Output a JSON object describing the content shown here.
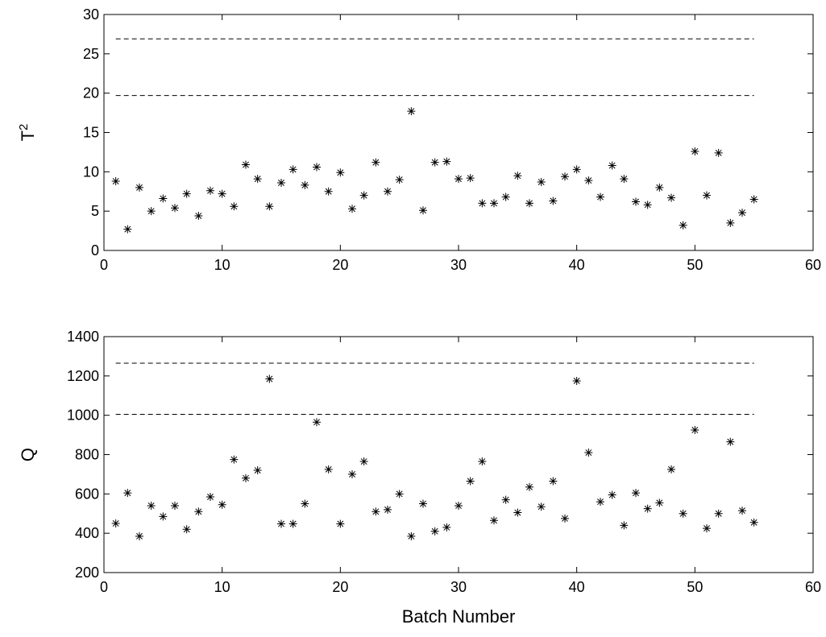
{
  "chart_data": [
    {
      "type": "scatter",
      "title": "",
      "xlabel": "",
      "ylabel": "T",
      "ylabel_superscript": "2",
      "xlim": [
        0,
        60
      ],
      "ylim": [
        0,
        30
      ],
      "xticks": [
        0,
        10,
        20,
        30,
        40,
        50,
        60
      ],
      "yticks": [
        0,
        5,
        10,
        15,
        20,
        25,
        30
      ],
      "grid": false,
      "marker": "asterisk",
      "limits": [
        {
          "y": 26.9,
          "x_range": [
            1,
            55
          ],
          "style": "dashed"
        },
        {
          "y": 19.7,
          "x_range": [
            1,
            55
          ],
          "style": "dashed"
        }
      ],
      "series": [
        {
          "x": [
            1,
            2,
            3,
            4,
            5,
            6,
            7,
            8,
            9,
            10,
            11,
            12,
            13,
            14,
            15,
            16,
            17,
            18,
            19,
            20,
            21,
            22,
            23,
            24,
            25,
            26,
            27,
            28,
            29,
            30,
            31,
            32,
            33,
            34,
            35,
            36,
            37,
            38,
            39,
            40,
            41,
            42,
            43,
            44,
            45,
            46,
            47,
            48,
            49,
            50,
            51,
            52,
            53,
            54,
            55
          ],
          "y": [
            8.8,
            2.7,
            8.0,
            5.0,
            6.6,
            5.4,
            7.2,
            4.4,
            7.6,
            7.2,
            5.6,
            10.9,
            9.1,
            5.6,
            8.6,
            10.3,
            8.3,
            10.6,
            7.5,
            9.9,
            5.3,
            7.0,
            11.2,
            7.5,
            9.0,
            17.7,
            5.1,
            11.2,
            11.3,
            9.1,
            9.2,
            6.0,
            6.0,
            6.8,
            9.5,
            6.0,
            8.7,
            6.3,
            9.4,
            10.3,
            8.9,
            6.8,
            10.8,
            9.1,
            6.2,
            5.8,
            8.0,
            6.7,
            3.2,
            12.6,
            7.0,
            12.4,
            3.5,
            4.8,
            6.5
          ]
        }
      ]
    },
    {
      "type": "scatter",
      "title": "",
      "xlabel": "Batch Number",
      "ylabel": "Q",
      "xlim": [
        0,
        60
      ],
      "ylim": [
        200,
        1400
      ],
      "xticks": [
        0,
        10,
        20,
        30,
        40,
        50,
        60
      ],
      "yticks": [
        200,
        400,
        600,
        800,
        1000,
        1200,
        1400
      ],
      "grid": false,
      "marker": "asterisk",
      "limits": [
        {
          "y": 1265,
          "x_range": [
            1,
            55
          ],
          "style": "dashed"
        },
        {
          "y": 1005,
          "x_range": [
            1,
            55
          ],
          "style": "dashed"
        }
      ],
      "series": [
        {
          "x": [
            1,
            2,
            3,
            4,
            5,
            6,
            7,
            8,
            9,
            10,
            11,
            12,
            13,
            14,
            15,
            16,
            17,
            18,
            19,
            20,
            21,
            22,
            23,
            24,
            25,
            26,
            27,
            28,
            29,
            30,
            31,
            32,
            33,
            34,
            35,
            36,
            37,
            38,
            39,
            40,
            41,
            42,
            43,
            44,
            45,
            46,
            47,
            48,
            49,
            50,
            51,
            52,
            53,
            54,
            55
          ],
          "y": [
            450,
            605,
            385,
            540,
            485,
            540,
            420,
            510,
            585,
            545,
            775,
            680,
            720,
            1185,
            448,
            448,
            550,
            965,
            725,
            448,
            700,
            765,
            510,
            520,
            600,
            385,
            550,
            410,
            430,
            540,
            665,
            765,
            465,
            570,
            505,
            635,
            535,
            665,
            475,
            1175,
            810,
            560,
            595,
            440,
            605,
            525,
            555,
            725,
            500,
            925,
            425,
            500,
            865,
            515,
            455
          ]
        }
      ]
    }
  ]
}
